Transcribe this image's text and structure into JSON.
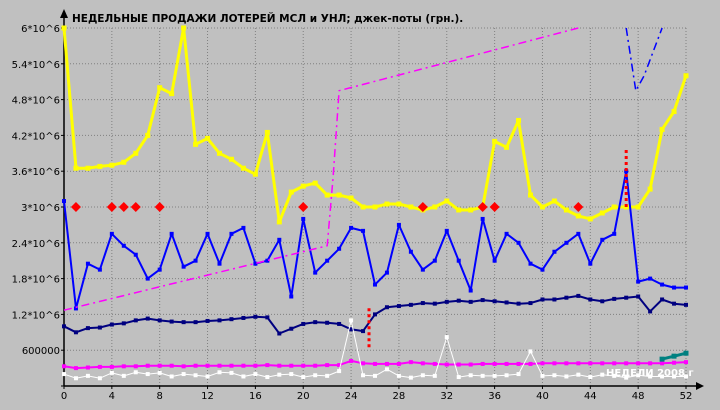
{
  "chart_data": {
    "type": "line",
    "title": "НЕДЕЛЬНЫЕ ПРОДАЖИ ЛОТЕРЕЙ МСЛ и УНЛ; джек-поты (грн.).",
    "xlabel": "НЕДЕЛИ 2008 г",
    "ylabel": "",
    "xlim": [
      0,
      52
    ],
    "ylim": [
      0,
      6000000
    ],
    "grid": true,
    "x_ticks": [
      0,
      4,
      8,
      12,
      16,
      20,
      24,
      28,
      32,
      36,
      40,
      44,
      48,
      52
    ],
    "y_ticks": [
      0,
      600000,
      1200000,
      1800000,
      2400000,
      3000000,
      3600000,
      4200000,
      4800000,
      5400000,
      6000000
    ],
    "y_tick_labels": [
      "",
      "600000",
      "1.2*10^6",
      "1.8*10^6",
      "2.4*10^6",
      "3*10^6",
      "3.6*10^6",
      "4.2*10^6",
      "4.8*10^6",
      "5.4*10^6",
      "6*10^6"
    ],
    "series": [
      {
        "name": "",
        "color": "#ffff00",
        "line_width": 3,
        "marker": "square",
        "x": [
          0,
          1,
          2,
          3,
          4,
          5,
          6,
          7,
          8,
          9,
          10,
          11,
          12,
          13,
          14,
          15,
          16,
          17,
          18,
          19,
          20,
          21,
          22,
          23,
          24,
          25,
          26,
          27,
          28,
          29,
          30,
          31,
          32,
          33,
          34,
          35,
          36,
          37,
          38,
          39,
          40,
          41,
          42,
          43,
          44,
          45,
          46,
          47,
          48,
          49,
          50,
          51,
          52
        ],
        "values": [
          6000000,
          3650000,
          3650000,
          3680000,
          3700000,
          3750000,
          3900000,
          4200000,
          5000000,
          4900000,
          6000000,
          4050000,
          4150000,
          3900000,
          3800000,
          3650000,
          3550000,
          4250000,
          2750000,
          3250000,
          3350000,
          3400000,
          3200000,
          3200000,
          3150000,
          3000000,
          3000000,
          3050000,
          3050000,
          3000000,
          2950000,
          3000000,
          3100000,
          2950000,
          2950000,
          3000000,
          4100000,
          4000000,
          4450000,
          3200000,
          3000000,
          3100000,
          2950000,
          2850000,
          2800000,
          2900000,
          3000000,
          3000000,
          3000000,
          3300000,
          4300000,
          4600000,
          5200000
        ]
      },
      {
        "name": "",
        "color": "#0000ff",
        "line_width": 2,
        "marker": "square",
        "x": [
          0,
          1,
          2,
          3,
          4,
          5,
          6,
          7,
          8,
          9,
          10,
          11,
          12,
          13,
          14,
          15,
          16,
          17,
          18,
          19,
          20,
          21,
          22,
          23,
          24,
          25,
          26,
          27,
          28,
          29,
          30,
          31,
          32,
          33,
          34,
          35,
          36,
          37,
          38,
          39,
          40,
          41,
          42,
          43,
          44,
          45,
          46,
          47,
          48,
          49,
          50,
          51,
          52
        ],
        "values": [
          3100000,
          1300000,
          2050000,
          1950000,
          2550000,
          2350000,
          2200000,
          1800000,
          1950000,
          2550000,
          2000000,
          2100000,
          2550000,
          2050000,
          2550000,
          2650000,
          2050000,
          2100000,
          2450000,
          1500000,
          2800000,
          1900000,
          2100000,
          2300000,
          2650000,
          2600000,
          1700000,
          1900000,
          2700000,
          2250000,
          1950000,
          2100000,
          2600000,
          2100000,
          1600000,
          2800000,
          2100000,
          2550000,
          2400000,
          2050000,
          1950000,
          2250000,
          2400000,
          2550000,
          2050000,
          2450000,
          2550000,
          3600000,
          1750000,
          1800000,
          1700000,
          1650000,
          1650000
        ]
      },
      {
        "name": "",
        "color": "#000080",
        "line_width": 2,
        "marker": "square",
        "x": [
          0,
          1,
          2,
          3,
          4,
          5,
          6,
          7,
          8,
          9,
          10,
          11,
          12,
          13,
          14,
          15,
          16,
          17,
          18,
          19,
          20,
          21,
          22,
          23,
          24,
          25,
          26,
          27,
          28,
          29,
          30,
          31,
          32,
          33,
          34,
          35,
          36,
          37,
          38,
          39,
          40,
          41,
          42,
          43,
          44,
          45,
          46,
          47,
          48,
          49,
          50,
          51,
          52
        ],
        "values": [
          1000000,
          900000,
          970000,
          980000,
          1030000,
          1050000,
          1100000,
          1130000,
          1100000,
          1080000,
          1070000,
          1070000,
          1090000,
          1100000,
          1120000,
          1140000,
          1160000,
          1150000,
          880000,
          960000,
          1040000,
          1070000,
          1060000,
          1040000,
          950000,
          920000,
          1200000,
          1320000,
          1340000,
          1360000,
          1390000,
          1380000,
          1410000,
          1430000,
          1410000,
          1440000,
          1420000,
          1400000,
          1380000,
          1390000,
          1450000,
          1450000,
          1480000,
          1510000,
          1450000,
          1420000,
          1460000,
          1480000,
          1500000,
          1250000,
          1450000,
          1380000,
          1360000
        ]
      },
      {
        "name": "",
        "color": "#ff00ff",
        "line_width": 2,
        "marker": "square",
        "x": [
          0,
          1,
          2,
          3,
          4,
          5,
          6,
          7,
          8,
          9,
          10,
          11,
          12,
          13,
          14,
          15,
          16,
          17,
          18,
          19,
          20,
          21,
          22,
          23,
          24,
          25,
          26,
          27,
          28,
          29,
          30,
          31,
          32,
          33,
          34,
          35,
          36,
          37,
          38,
          39,
          40,
          41,
          42,
          43,
          44,
          45,
          46,
          47,
          48,
          49,
          50,
          51,
          52
        ],
        "values": [
          330000,
          300000,
          310000,
          320000,
          320000,
          330000,
          330000,
          340000,
          340000,
          340000,
          330000,
          340000,
          340000,
          340000,
          340000,
          340000,
          340000,
          350000,
          340000,
          340000,
          340000,
          340000,
          350000,
          350000,
          420000,
          380000,
          370000,
          370000,
          370000,
          400000,
          380000,
          370000,
          360000,
          360000,
          360000,
          370000,
          370000,
          370000,
          370000,
          370000,
          380000,
          380000,
          380000,
          380000,
          380000,
          380000,
          380000,
          380000,
          380000,
          380000,
          380000,
          390000,
          400000
        ]
      },
      {
        "name": "",
        "color": "#ffffff",
        "line_width": 1,
        "marker": "square",
        "x": [
          0,
          1,
          2,
          3,
          4,
          5,
          6,
          7,
          8,
          9,
          10,
          11,
          12,
          13,
          14,
          15,
          16,
          17,
          18,
          19,
          20,
          21,
          22,
          23,
          24,
          25,
          26,
          27,
          28,
          29,
          30,
          31,
          32,
          33,
          34,
          35,
          36,
          37,
          38,
          39,
          40,
          41,
          42,
          43,
          44,
          45,
          46,
          47,
          48,
          49,
          50,
          51,
          52
        ],
        "values": [
          200000,
          130000,
          170000,
          130000,
          220000,
          170000,
          230000,
          200000,
          220000,
          160000,
          200000,
          180000,
          160000,
          230000,
          220000,
          160000,
          200000,
          150000,
          190000,
          200000,
          150000,
          180000,
          170000,
          250000,
          1100000,
          180000,
          170000,
          280000,
          170000,
          140000,
          180000,
          170000,
          820000,
          150000,
          180000,
          170000,
          170000,
          180000,
          200000,
          580000,
          170000,
          180000,
          160000,
          190000,
          150000,
          190000,
          170000,
          140000,
          180000,
          160000,
          160000,
          160000,
          160000
        ]
      },
      {
        "name": "",
        "color": "#ff00ff",
        "line_width": 1.5,
        "marker": "none",
        "dash": true,
        "x": [
          0,
          22,
          22.5,
          23,
          43
        ],
        "values": [
          1270000,
          2350000,
          3500000,
          4950000,
          6000000
        ]
      },
      {
        "name": "",
        "color": "#0000ff",
        "line_width": 1.5,
        "marker": "none",
        "dash": true,
        "x": [
          47,
          47.8,
          48.5,
          50
        ],
        "values": [
          6000000,
          4950000,
          5200000,
          6000000
        ]
      },
      {
        "name": "",
        "color": "#008080",
        "line_width": 3,
        "marker": "square",
        "x": [
          50,
          51,
          52
        ],
        "values": [
          450000,
          500000,
          550000
        ]
      }
    ],
    "points": {
      "color": "#ff0000",
      "marker": "diamond",
      "x": [
        1,
        4,
        5,
        6,
        8,
        20,
        30,
        35,
        36,
        43
      ],
      "values": [
        3000000,
        3000000,
        3000000,
        3000000,
        3000000,
        3000000,
        3000000,
        3000000,
        3000000,
        3000000
      ]
    },
    "vertical_markers": [
      {
        "color": "#ff0000",
        "x": 25.5,
        "values": [
          650000,
          1350000
        ]
      },
      {
        "color": "#ff0000",
        "x": 47,
        "values": [
          3000000,
          4000000
        ]
      }
    ]
  }
}
